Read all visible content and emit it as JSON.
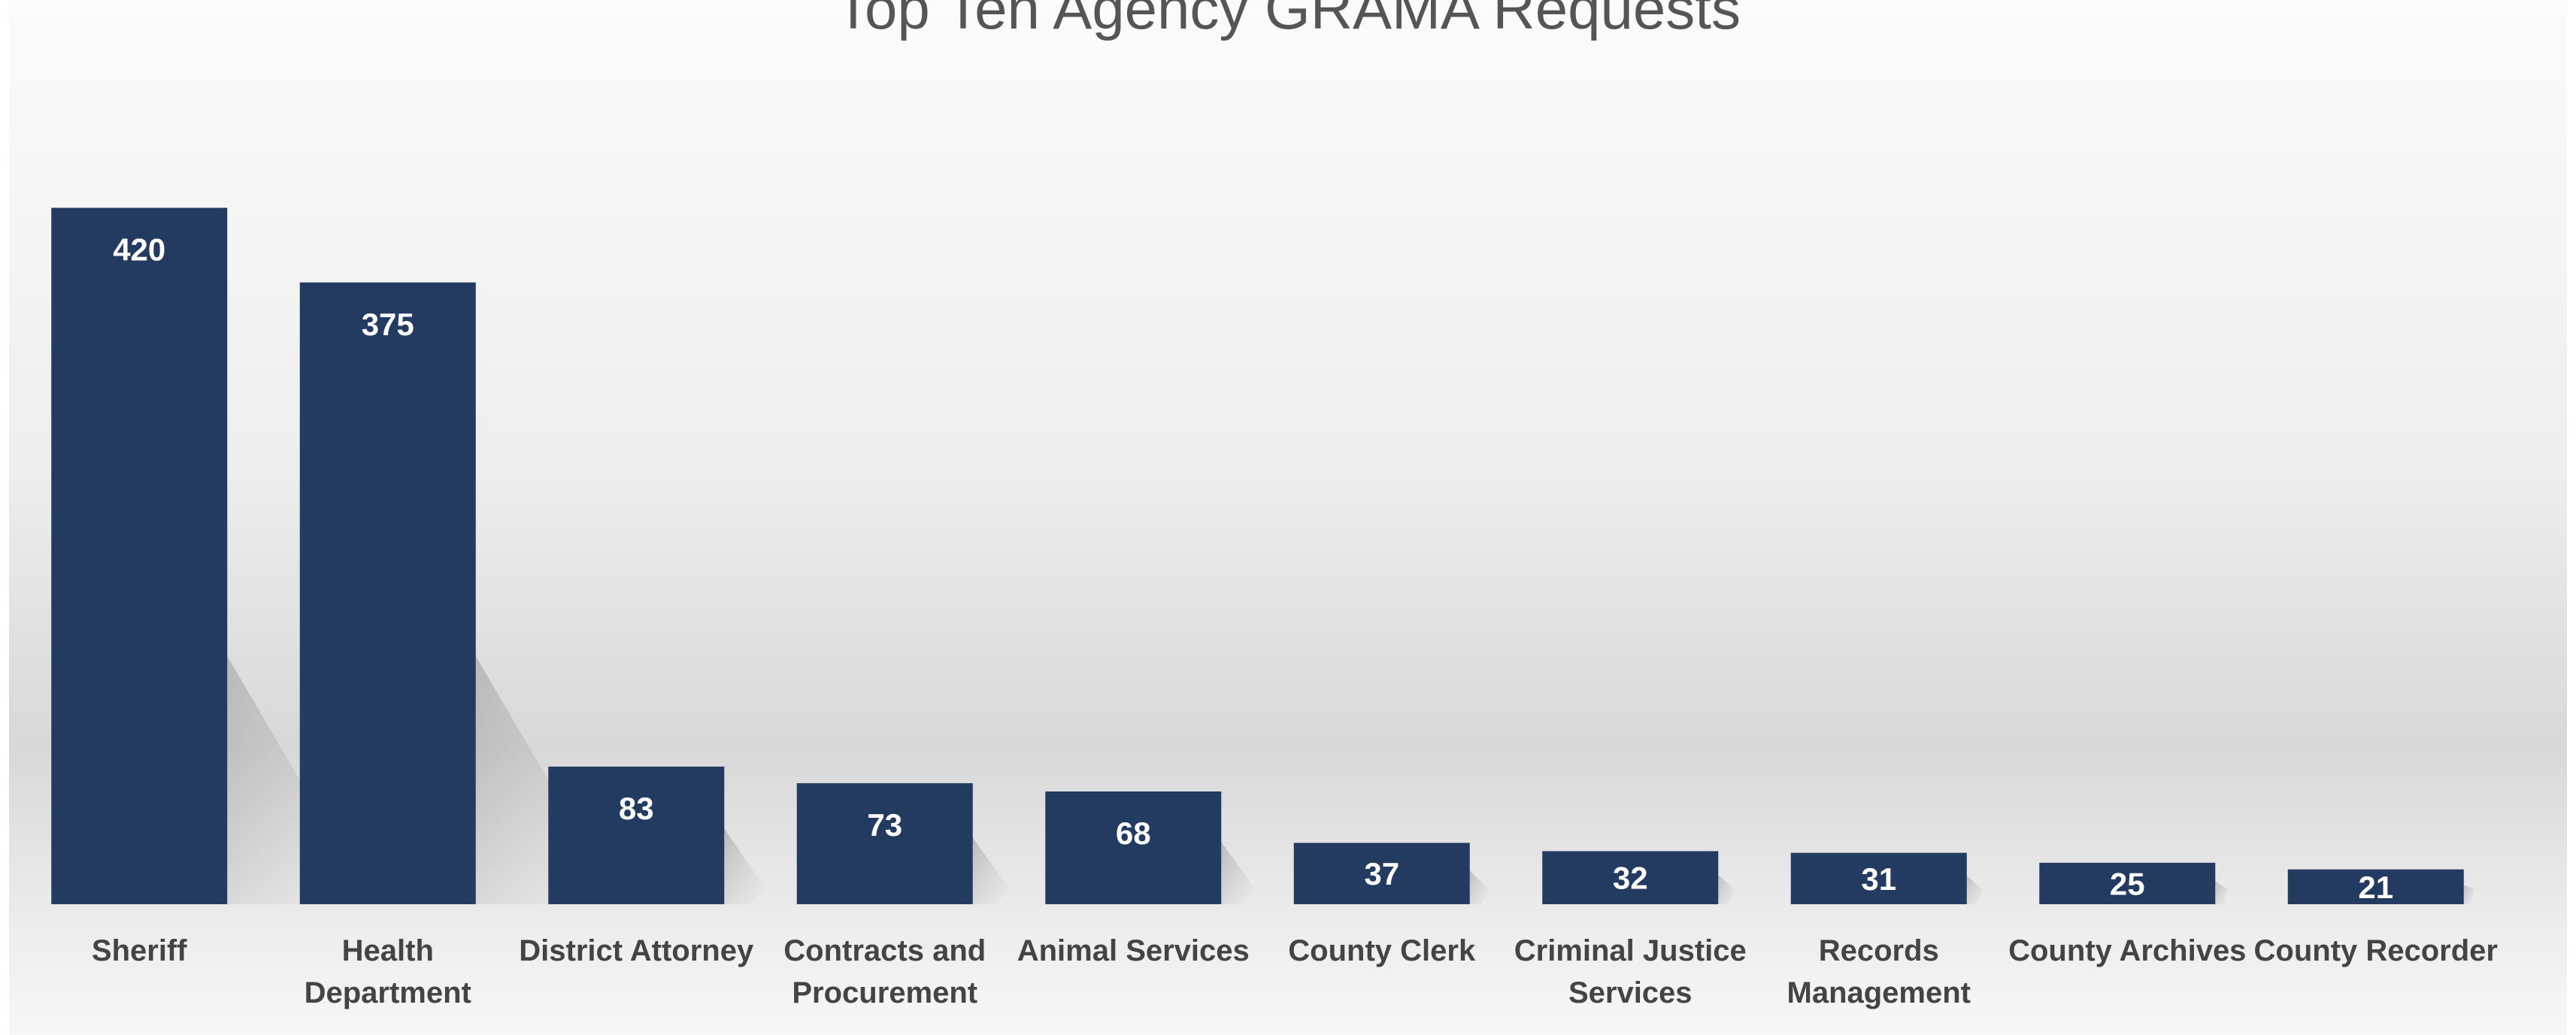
{
  "chart_data": {
    "type": "bar",
    "title": "Top Ten Agency GRAMA Requests",
    "xlabel": "",
    "ylabel": "",
    "categories": [
      "Sheriff",
      "Health Department",
      "District Attorney",
      "Contracts and Procurement",
      "Animal Services",
      "County Clerk",
      "Criminal Justice Services",
      "Records Management",
      "County Archives",
      "County Recorder"
    ],
    "category_lines": [
      [
        "Sheriff"
      ],
      [
        "Health",
        "Department"
      ],
      [
        "District Attorney"
      ],
      [
        "Contracts and",
        "Procurement"
      ],
      [
        "Animal Services"
      ],
      [
        "County Clerk"
      ],
      [
        "Criminal Justice",
        "Services"
      ],
      [
        "Records",
        "Management"
      ],
      [
        "County Archives"
      ],
      [
        "County Recorder"
      ]
    ],
    "values": [
      420,
      375,
      83,
      73,
      68,
      37,
      32,
      31,
      25,
      21
    ],
    "ylim": [
      0,
      500
    ],
    "grid": false,
    "legend": "none",
    "data_labels": true,
    "colors": {
      "bar": "#233A61",
      "value_label": "#FFFFFF",
      "category_label": "#444444",
      "title": "#555555"
    }
  }
}
